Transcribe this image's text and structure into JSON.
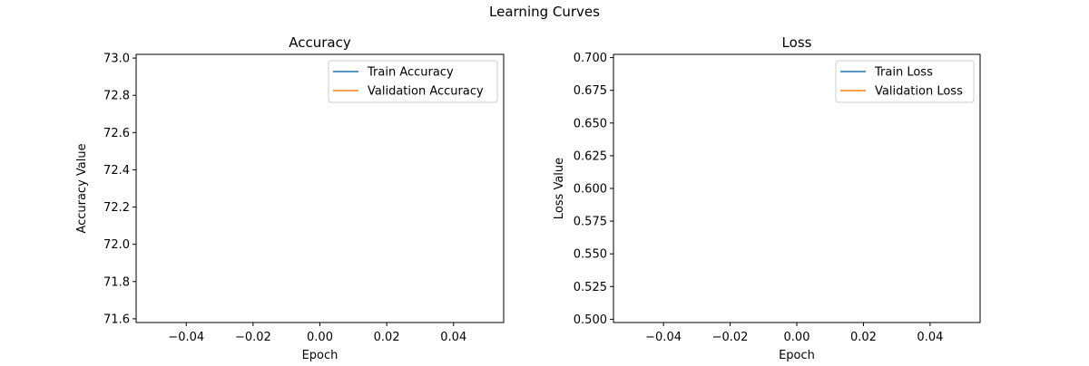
{
  "figure": {
    "title": "Learning Curves"
  },
  "chart_data": [
    {
      "type": "line",
      "title": "Accuracy",
      "xlabel": "Epoch",
      "ylabel": "Accuracy Value",
      "xlim": [
        -0.055,
        0.055
      ],
      "ylim": [
        71.58,
        73.02
      ],
      "xticks": [
        -0.04,
        -0.02,
        0.0,
        0.02,
        0.04
      ],
      "xtick_labels": [
        "−0.04",
        "−0.02",
        "0.00",
        "0.02",
        "0.04"
      ],
      "yticks": [
        71.6,
        71.8,
        72.0,
        72.2,
        72.4,
        72.6,
        72.8,
        73.0
      ],
      "ytick_labels": [
        "71.6",
        "71.8",
        "72.0",
        "72.2",
        "72.4",
        "72.6",
        "72.8",
        "73.0"
      ],
      "grid": false,
      "legend_position": "upper-right",
      "series": [
        {
          "name": "Train Accuracy",
          "color": "#1f77b4",
          "x": [],
          "y": []
        },
        {
          "name": "Validation Accuracy",
          "color": "#ff7f0e",
          "x": [],
          "y": []
        }
      ]
    },
    {
      "type": "line",
      "title": "Loss",
      "xlabel": "Epoch",
      "ylabel": "Loss Value",
      "xlim": [
        -0.055,
        0.055
      ],
      "ylim": [
        0.4975,
        0.7025
      ],
      "xticks": [
        -0.04,
        -0.02,
        0.0,
        0.02,
        0.04
      ],
      "xtick_labels": [
        "−0.04",
        "−0.02",
        "0.00",
        "0.02",
        "0.04"
      ],
      "yticks": [
        0.5,
        0.525,
        0.55,
        0.575,
        0.6,
        0.625,
        0.65,
        0.675,
        0.7
      ],
      "ytick_labels": [
        "0.500",
        "0.525",
        "0.550",
        "0.575",
        "0.600",
        "0.625",
        "0.650",
        "0.675",
        "0.700"
      ],
      "grid": false,
      "legend_position": "upper-right",
      "series": [
        {
          "name": "Train Loss",
          "color": "#1f77b4",
          "x": [],
          "y": []
        },
        {
          "name": "Validation Loss",
          "color": "#ff7f0e",
          "x": [],
          "y": []
        }
      ]
    }
  ]
}
